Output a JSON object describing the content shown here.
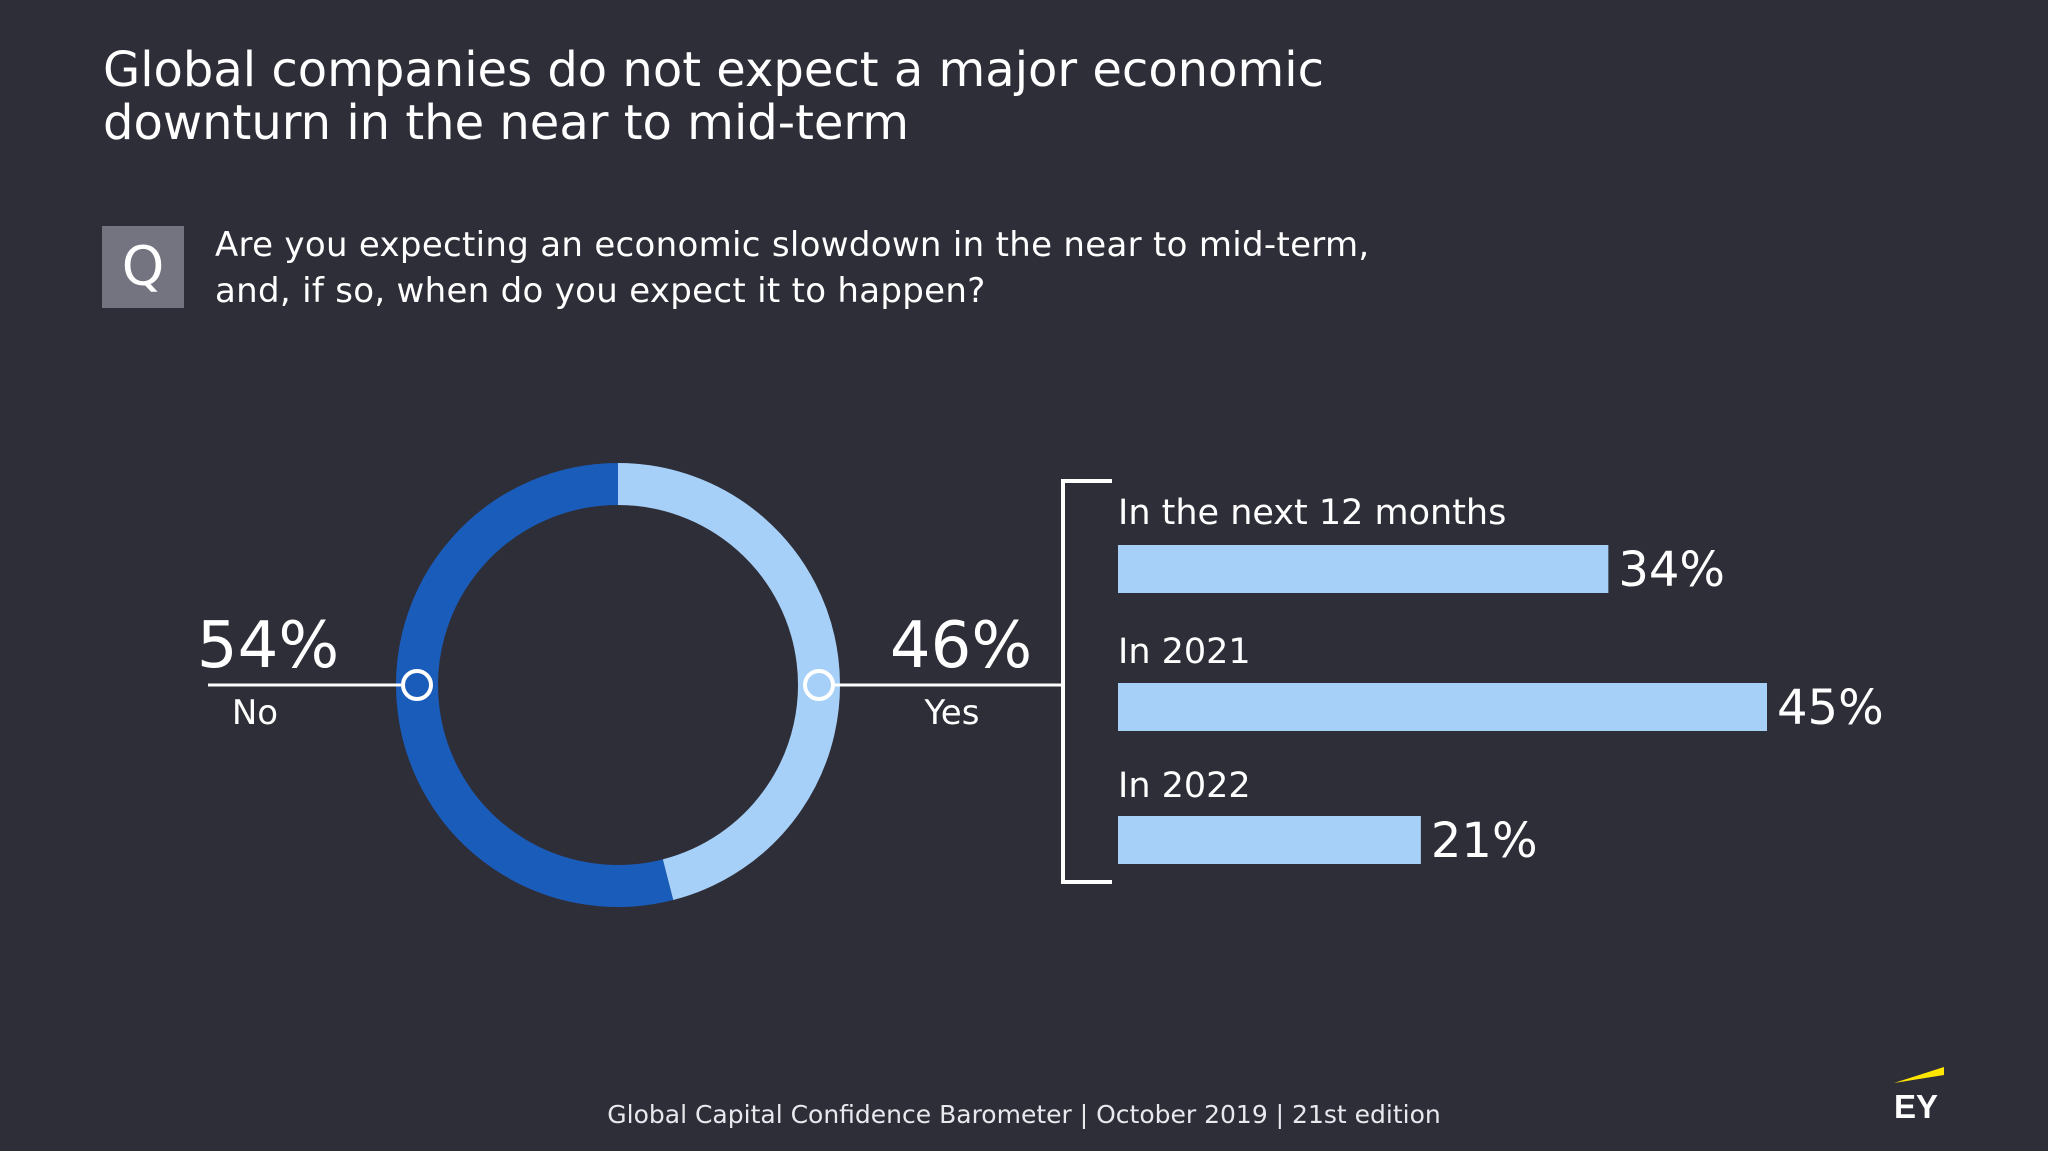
{
  "title": {
    "line1": "Global companies do not expect a major economic",
    "line2": "downturn in the near to mid-term"
  },
  "question": {
    "marker": "Q",
    "line1": "Are you expecting an economic slowdown in the near to mid-term,",
    "line2": "and, if so, when do you expect it to happen?"
  },
  "chart_data": [
    {
      "type": "pie",
      "variant": "donut",
      "slices": [
        {
          "label": "No",
          "value": 54,
          "display": "54%",
          "color": "#1a5cba"
        },
        {
          "label": "Yes",
          "value": 46,
          "display": "46%",
          "color": "#a6d0f7"
        }
      ]
    },
    {
      "type": "bar",
      "orientation": "horizontal",
      "categories": [
        "In the next 12 months",
        "In 2021",
        "In 2022"
      ],
      "values": [
        34,
        45,
        21
      ],
      "value_labels": [
        "34%",
        "45%",
        "21%"
      ],
      "color": "#a6d0f7"
    }
  ],
  "footer": "Global Capital Confidence Barometer | October 2019 | 21st edition",
  "logo": {
    "text": "EY",
    "accent_color": "#ffe600"
  },
  "colors": {
    "background": "#2e2e38",
    "no_slice": "#1a5cba",
    "yes_slice": "#a6d0f7"
  }
}
